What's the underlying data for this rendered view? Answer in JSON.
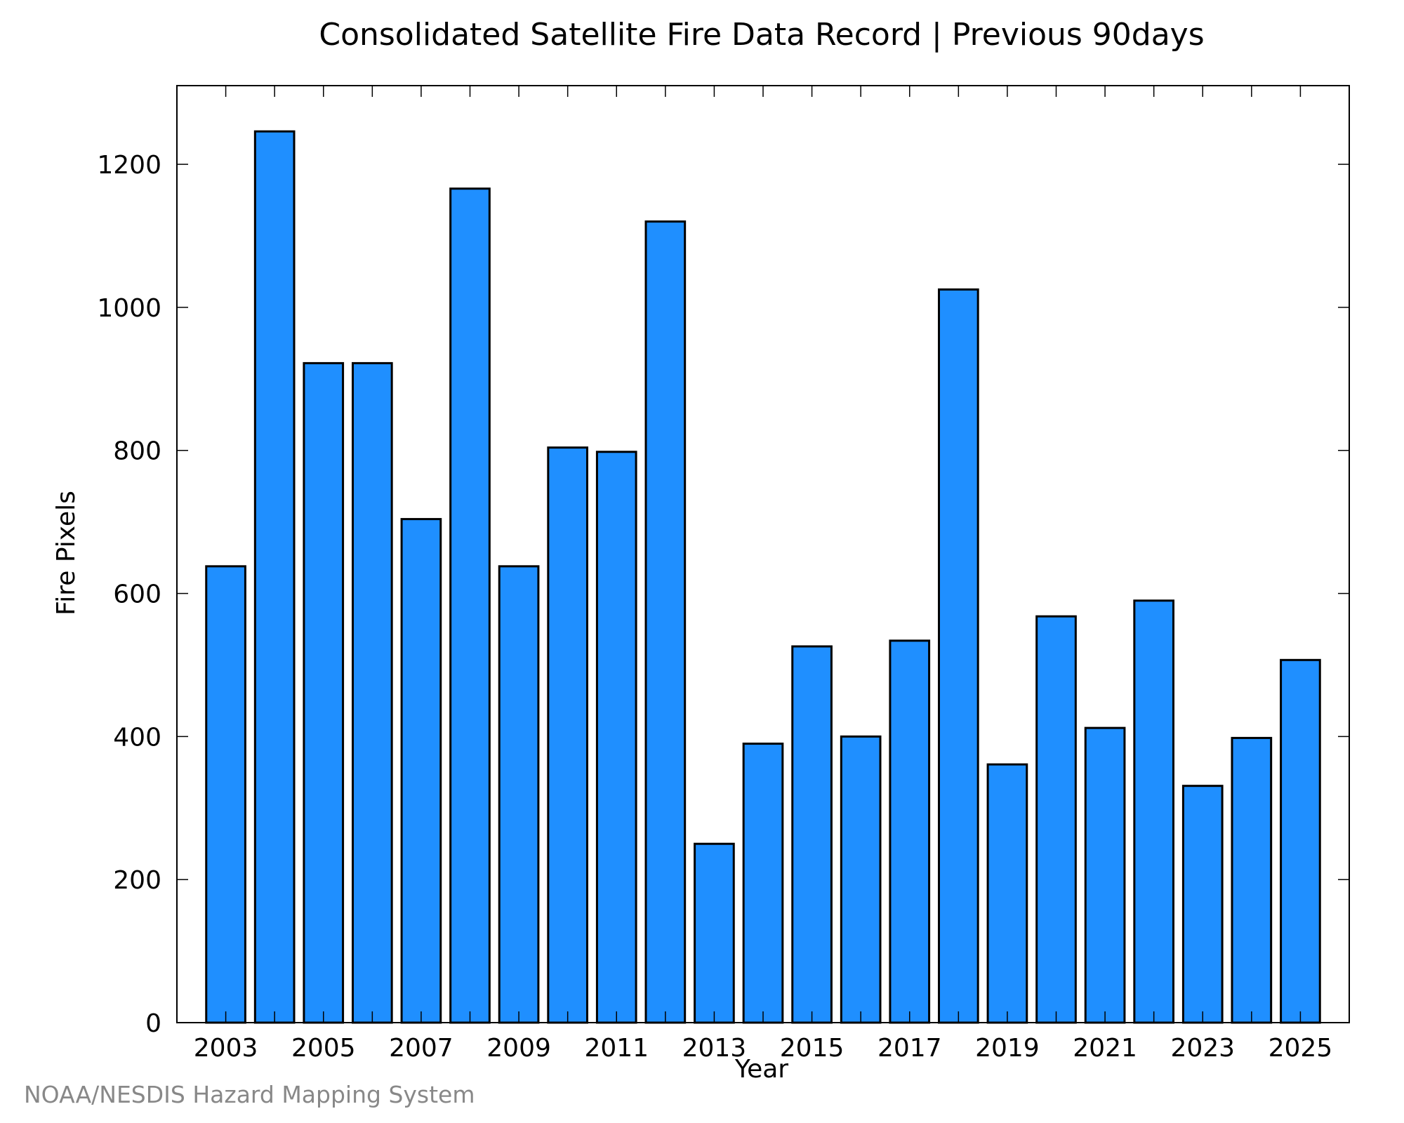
{
  "chart_data": {
    "type": "bar",
    "title": "Consolidated Satellite Fire Data Record | Previous 90days",
    "xlabel": "Year",
    "ylabel": "Fire Pixels",
    "categories": [
      2003,
      2004,
      2005,
      2006,
      2007,
      2008,
      2009,
      2010,
      2011,
      2012,
      2013,
      2014,
      2015,
      2016,
      2017,
      2018,
      2019,
      2020,
      2021,
      2022,
      2023,
      2024,
      2025
    ],
    "x_tick_labels": [
      "2003",
      "2005",
      "2007",
      "2009",
      "2011",
      "2013",
      "2015",
      "2017",
      "2019",
      "2021",
      "2023",
      "2025"
    ],
    "y_tick_labels": [
      "0",
      "200",
      "400",
      "600",
      "800",
      "1000",
      "1200"
    ],
    "values": [
      638,
      1246,
      922,
      922,
      704,
      1166,
      638,
      804,
      798,
      1120,
      250,
      390,
      526,
      400,
      534,
      1025,
      361,
      568,
      412,
      590,
      331,
      398,
      507
    ],
    "ylim": [
      0,
      1310
    ],
    "xlim": [
      2002,
      2026
    ],
    "grid": false,
    "bar_color": "#1f8fff",
    "bar_edge_color": "#000000"
  },
  "footer": {
    "credit": "NOAA/NESDIS Hazard Mapping System"
  }
}
